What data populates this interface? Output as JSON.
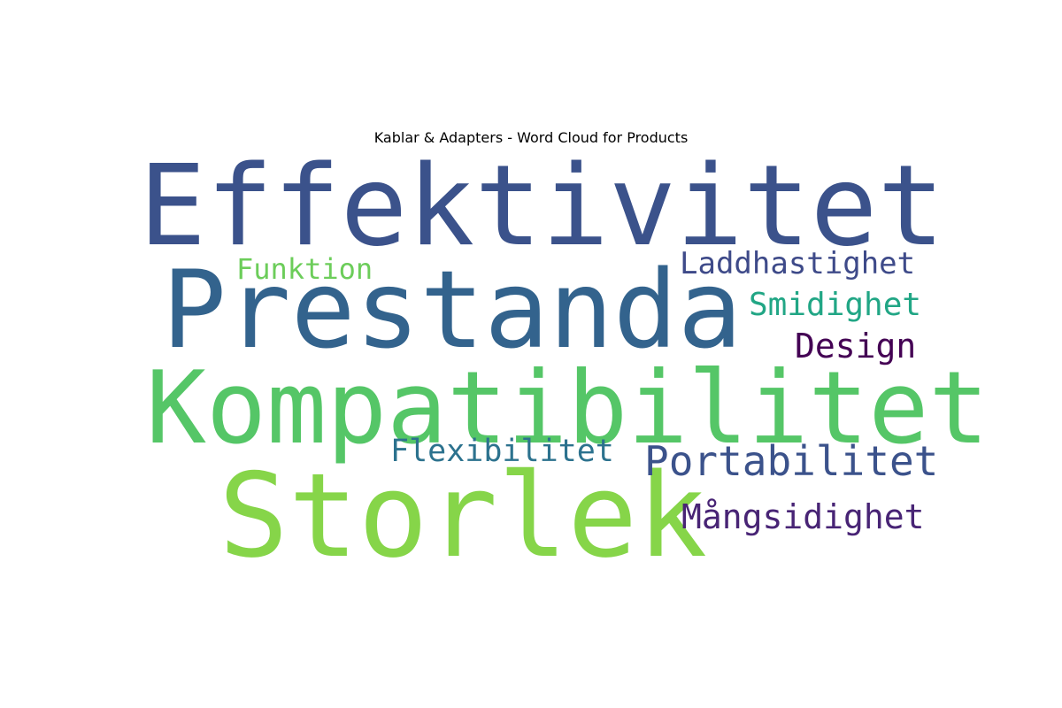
{
  "chart_data": {
    "type": "wordcloud",
    "title": "Kablar & Adapters - Word Cloud for Products",
    "words": [
      {
        "text": "Effektivitet",
        "weight": 1.0,
        "color": "#3b528b"
      },
      {
        "text": "Prestanda",
        "weight": 0.96,
        "color": "#33638d"
      },
      {
        "text": "Kompatibilitet",
        "weight": 0.92,
        "color": "#55c667"
      },
      {
        "text": "Storlek",
        "weight": 0.9,
        "color": "#86d549"
      },
      {
        "text": "Laddhastighet",
        "weight": 0.3,
        "color": "#3e4a89"
      },
      {
        "text": "Funktion",
        "weight": 0.28,
        "color": "#6ccd5a"
      },
      {
        "text": "Smidighet",
        "weight": 0.32,
        "color": "#21a685"
      },
      {
        "text": "Design",
        "weight": 0.33,
        "color": "#440154"
      },
      {
        "text": "Flexibilitet",
        "weight": 0.3,
        "color": "#2c728e"
      },
      {
        "text": "Portabilitet",
        "weight": 0.4,
        "color": "#3b528b"
      },
      {
        "text": "Mångsidighet",
        "weight": 0.35,
        "color": "#482475"
      }
    ]
  }
}
